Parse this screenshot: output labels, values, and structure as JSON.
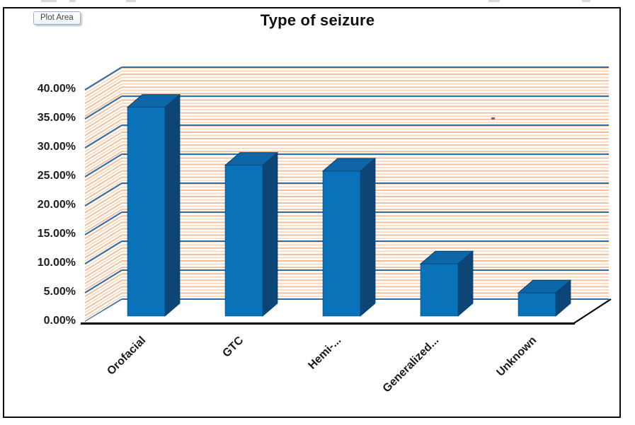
{
  "window": {
    "tooltip": "Plot Area"
  },
  "chart_data": {
    "type": "bar",
    "variant": "3d-column",
    "title": "Type of seizure",
    "categories": [
      "Orofacial",
      "GTC",
      "Hemi-...",
      "Generalized...",
      "Unknown"
    ],
    "values": [
      36,
      26,
      25,
      9,
      4
    ],
    "unit": "%",
    "xlabel": "",
    "ylabel": "",
    "ylim": [
      0,
      40
    ],
    "ytick_step": 5,
    "yticks": [
      "0.00%",
      "5.00%",
      "10.00%",
      "15.00%",
      "20.00%",
      "25.00%",
      "30.00%",
      "35.00%",
      "40.00%"
    ],
    "legend": "none",
    "grid": true,
    "colors": {
      "bar_front": "#0a72b8",
      "bar_top": "#0c66a8",
      "bar_side": "#0d4576",
      "bar_edge": "#083d68",
      "gridline": "#2e6da8",
      "wall_stripe": "#f3bd97",
      "wall_stripe_light": "#f9dabf",
      "floor": "#ffffff",
      "frame": "#0a0a0a",
      "artifact": "#8d3f3f"
    }
  }
}
